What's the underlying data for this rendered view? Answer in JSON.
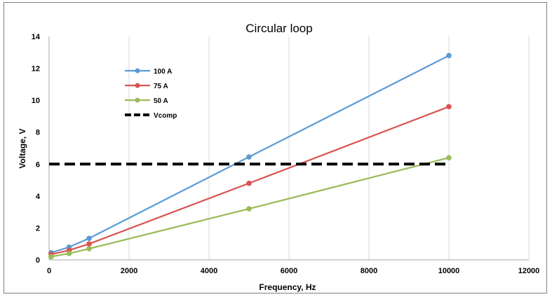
{
  "chart_data": {
    "type": "line",
    "title": "Circular loop",
    "xlabel": "Frequency, Hz",
    "ylabel": "Voltage, V",
    "xlim": [
      0,
      12000
    ],
    "ylim": [
      0,
      14
    ],
    "xticks": [
      0,
      2000,
      4000,
      6000,
      8000,
      10000,
      12000
    ],
    "yticks": [
      0,
      2,
      4,
      6,
      8,
      10,
      12,
      14
    ],
    "grid": "vertical",
    "legend_position": "top-left",
    "series": [
      {
        "name": "100 A",
        "color": "#5b9bd5",
        "marker": true,
        "dash": false,
        "x": [
          50,
          500,
          1000,
          5000,
          10000
        ],
        "y": [
          0.45,
          0.8,
          1.35,
          6.45,
          12.8
        ]
      },
      {
        "name": "75 A",
        "color": "#d9534f",
        "marker": true,
        "dash": false,
        "x": [
          50,
          500,
          1000,
          5000,
          10000
        ],
        "y": [
          0.35,
          0.6,
          1.0,
          4.8,
          9.6
        ]
      },
      {
        "name": "50 A",
        "color": "#9bbb59",
        "marker": true,
        "dash": false,
        "x": [
          50,
          500,
          1000,
          5000,
          10000
        ],
        "y": [
          0.2,
          0.4,
          0.7,
          3.2,
          6.4
        ]
      },
      {
        "name": "Vcomp",
        "color": "#000000",
        "marker": false,
        "dash": true,
        "x": [
          0,
          10000
        ],
        "y": [
          6,
          6
        ]
      }
    ]
  }
}
